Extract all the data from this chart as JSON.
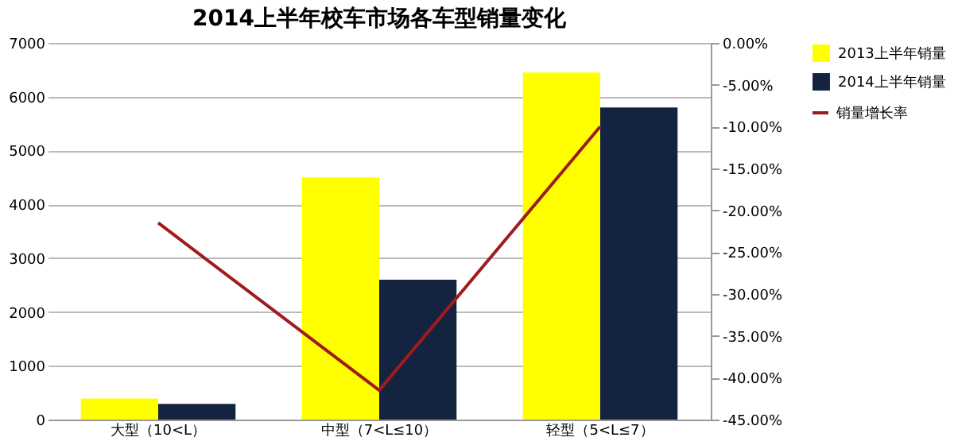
{
  "chart_data": {
    "type": "bar",
    "title": "2014上半年校车市场各车型销量变化",
    "categories": [
      "大型（10<L）",
      "中型（7<L≤10）",
      "轻型（5<L≤7）"
    ],
    "series": [
      {
        "name": "2013上半年销量",
        "color": "#ffff00",
        "values": [
          390,
          4500,
          6450
        ]
      },
      {
        "name": "2014上半年销量",
        "color": "#14233f",
        "values": [
          290,
          2600,
          5800
        ]
      },
      {
        "name": "销量增长率",
        "type": "line",
        "axis": "y2",
        "color": "#a01c1c",
        "values": [
          -21.5,
          -41.5,
          -10.0
        ]
      }
    ],
    "ylim": [
      0,
      7000
    ],
    "yticks": [
      0,
      1000,
      2000,
      3000,
      4000,
      5000,
      6000,
      7000
    ],
    "y2lim": [
      -45,
      0
    ],
    "y2ticks": [
      {
        "value": 0,
        "label": "0.00%"
      },
      {
        "value": -5,
        "label": "-5.00%"
      },
      {
        "value": -10,
        "label": "-10.00%"
      },
      {
        "value": -15,
        "label": "-15.00%"
      },
      {
        "value": -20,
        "label": "-20.00%"
      },
      {
        "value": -25,
        "label": "-25.00%"
      },
      {
        "value": -30,
        "label": "-30.00%"
      },
      {
        "value": -35,
        "label": "-35.00%"
      },
      {
        "value": -40,
        "label": "-40.00%"
      },
      {
        "value": -45,
        "label": "-45.00%"
      }
    ],
    "grid": "y",
    "legend": "right",
    "line_style": "solid",
    "marker": "none"
  }
}
